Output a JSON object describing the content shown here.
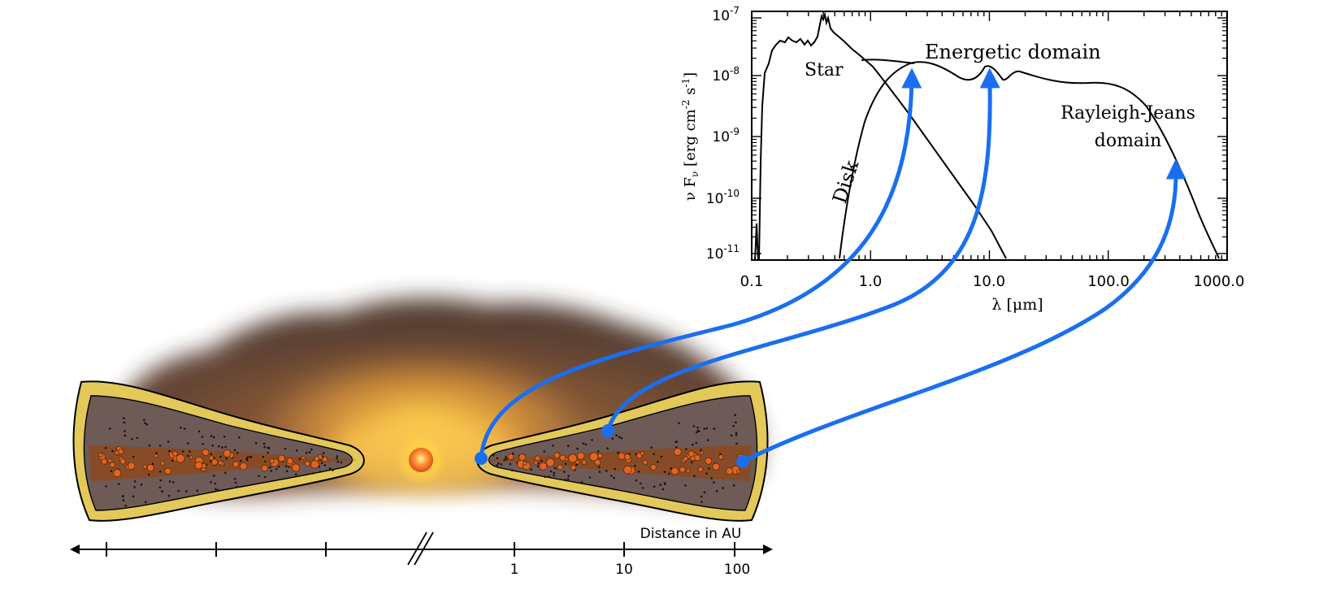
{
  "sed_plot": {
    "y_axis_label": "ν F",
    "y_axis_sub": "ν",
    "y_axis_units": " [erg cm",
    "y_axis_exp1": "-2",
    "y_axis_mid": " s",
    "y_axis_exp2": "-1",
    "y_axis_end": "]",
    "x_axis_label": "λ [μm]",
    "y_ticks": [
      {
        "base": "10",
        "exp": "-7"
      },
      {
        "base": "10",
        "exp": "-8"
      },
      {
        "base": "10",
        "exp": "-9"
      },
      {
        "base": "10",
        "exp": "-10"
      },
      {
        "base": "10",
        "exp": "-11"
      }
    ],
    "x_ticks": [
      "0.1",
      "1.0",
      "10.0",
      "100.0",
      "1000.0"
    ],
    "labels": {
      "star": "Star",
      "disk": "Disk",
      "energetic": "Energetic domain",
      "rj_line1": "Rayleigh-Jeans",
      "rj_line2": "domain"
    }
  },
  "distance_axis": {
    "title": "Distance in AU",
    "ticks": [
      "1",
      "10",
      "100"
    ]
  },
  "colors": {
    "arrow": "#1a6ff0",
    "disk_fill": "#6e5a56",
    "disk_rim": "#e2c95a",
    "midplane": "#8a4a22",
    "grain": "#e2641e",
    "star": "#ef6a1e"
  }
}
